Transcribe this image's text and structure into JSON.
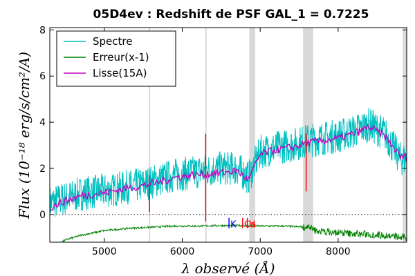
{
  "chart_data": {
    "type": "line",
    "title": "05D4ev : Redshift de PSF GAL_1 = 0.7225",
    "xlabel": "λ observé (Å)",
    "ylabel": "Flux (10⁻¹⁸ erg/s/cm²/A)",
    "xlim": [
      4300,
      8880
    ],
    "ylim": [
      -1.2,
      8.1
    ],
    "xticks": [
      5000,
      6000,
      7000,
      8000
    ],
    "yticks": [
      0,
      2,
      4,
      6,
      8
    ],
    "zero_line": "dotted",
    "legend_position": "top-left",
    "sky_bands": [
      [
        5570,
        5585
      ],
      [
        6295,
        6305
      ],
      [
        6860,
        6935
      ],
      [
        7550,
        7680
      ],
      [
        8830,
        8880
      ]
    ],
    "series": [
      {
        "name": "Spectre",
        "color": "#00bfbf",
        "x": [
          4300,
          4500,
          4700,
          4900,
          5100,
          5300,
          5500,
          5700,
          5900,
          6100,
          6300,
          6500,
          6700,
          6850,
          7000,
          7200,
          7400,
          7600,
          7800,
          8000,
          8200,
          8400,
          8600,
          8800
        ],
        "y": [
          0.5,
          0.7,
          0.9,
          1.0,
          1.05,
          1.2,
          1.3,
          1.5,
          1.7,
          1.8,
          1.9,
          2.0,
          2.0,
          1.6,
          2.7,
          2.9,
          3.0,
          3.2,
          3.3,
          3.4,
          3.6,
          3.9,
          3.5,
          2.4
        ]
      },
      {
        "name": "Erreur(x-1)",
        "color": "#008000",
        "x": [
          4300,
          4500,
          4700,
          5000,
          5300,
          5600,
          5900,
          6200,
          6500,
          6800,
          7000,
          7300,
          7600,
          7700,
          8000,
          8300,
          8600,
          8800
        ],
        "y": [
          -1.5,
          -1.1,
          -0.9,
          -0.7,
          -0.6,
          -0.55,
          -0.5,
          -0.5,
          -0.48,
          -0.48,
          -0.5,
          -0.5,
          -0.55,
          -0.7,
          -0.8,
          -0.85,
          -0.9,
          -1.0
        ]
      },
      {
        "name": "Lisse(15A)",
        "color": "#bf00bf",
        "x": [
          4300,
          4500,
          4700,
          4900,
          5100,
          5300,
          5500,
          5700,
          5900,
          6100,
          6300,
          6500,
          6700,
          6850,
          7000,
          7200,
          7400,
          7600,
          7800,
          8000,
          8200,
          8400,
          8600,
          8800
        ],
        "y": [
          0.3,
          0.6,
          0.8,
          0.9,
          1.0,
          1.15,
          1.25,
          1.4,
          1.6,
          1.7,
          1.75,
          1.8,
          1.9,
          1.5,
          2.6,
          2.8,
          2.9,
          3.1,
          3.2,
          3.3,
          3.5,
          3.8,
          3.4,
          2.5
        ]
      }
    ],
    "line_markers": [
      {
        "label": "Ca",
        "color": "#ff0000",
        "x": 6775
      },
      {
        "label": "H",
        "color": "#ff0000",
        "x": 6835
      },
      {
        "label": "K",
        "color": "#0000ff",
        "x": 6600
      }
    ]
  }
}
